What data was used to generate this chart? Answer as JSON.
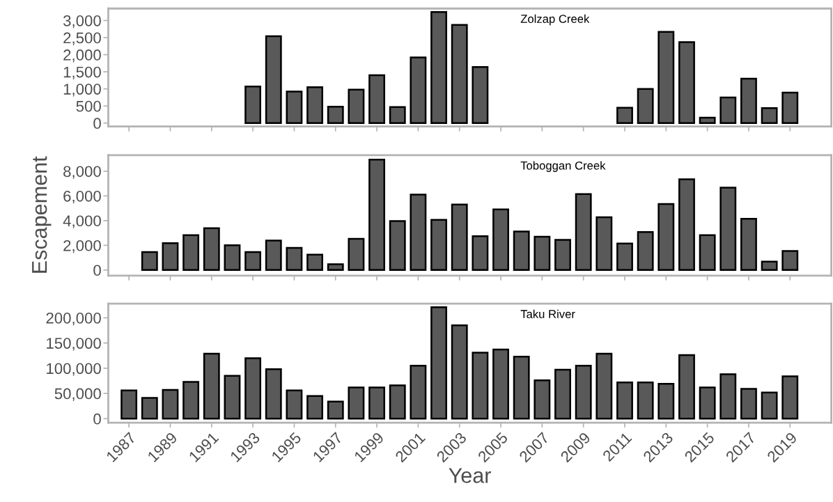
{
  "chart_data": [
    {
      "type": "bar",
      "title": "Zolzap Creek",
      "tick_labels": "y",
      "grid": false,
      "legend": false,
      "categories": [
        null,
        null,
        null,
        null,
        null,
        null,
        null,
        null,
        null,
        null,
        null,
        null,
        null,
        null,
        null,
        null,
        null,
        null,
        null,
        null,
        null,
        null,
        null,
        null,
        null,
        null,
        null,
        null,
        null,
        null,
        null,
        null,
        null
      ],
      "series": [
        {
          "color": "#595959",
          "values": [
            null,
            null,
            null,
            null,
            null,
            null,
            1070,
            2540,
            920,
            1050,
            480,
            980,
            1400,
            470,
            1920,
            3250,
            2870,
            1640,
            null,
            null,
            null,
            null,
            null,
            null,
            450,
            1000,
            2670,
            2370,
            160,
            750,
            1300,
            440,
            890
          ]
        }
      ],
      "ylim": [
        -100,
        3350
      ],
      "yticks": [
        0,
        500,
        {
          "value": 1000,
          "label": "1,000"
        },
        {
          "value": 1500,
          "label": "1,500"
        },
        {
          "value": 2000,
          "label": "2,000"
        },
        {
          "value": 2500,
          "label": "2,500"
        },
        {
          "value": 3000,
          "label": "3,000"
        }
      ]
    },
    {
      "type": "bar",
      "title": "Toboggan Creek",
      "ylabel": "Escapement",
      "tick_labels": "y",
      "grid": false,
      "legend": false,
      "categories": [
        null,
        null,
        null,
        null,
        null,
        null,
        null,
        null,
        null,
        null,
        null,
        null,
        null,
        null,
        null,
        null,
        null,
        null,
        null,
        null,
        null,
        null,
        null,
        null,
        null,
        null,
        null,
        null,
        null,
        null,
        null,
        null,
        null
      ],
      "series": [
        {
          "color": "#595959",
          "values": [
            null,
            1450,
            2180,
            2820,
            3380,
            2010,
            1450,
            2390,
            1800,
            1240,
            470,
            2520,
            8930,
            3970,
            6110,
            4060,
            5300,
            2740,
            4910,
            3120,
            2690,
            2440,
            6150,
            4270,
            2140,
            3080,
            5340,
            7350,
            2820,
            6670,
            4150,
            680,
            1540
          ]
        }
      ],
      "ylim": [
        -450,
        9300
      ],
      "yticks": [
        0,
        {
          "value": 2000,
          "label": "2,000"
        },
        {
          "value": 4000,
          "label": "4,000"
        },
        {
          "value": 6000,
          "label": "6,000"
        },
        {
          "value": 8000,
          "label": "8,000"
        }
      ]
    },
    {
      "type": "bar",
      "title": "Taku River",
      "xlabel": "Year",
      "grid": false,
      "legend": false,
      "categories": [
        "1987",
        null,
        "1989",
        null,
        "1991",
        null,
        "1993",
        null,
        "1995",
        null,
        "1997",
        null,
        "1999",
        null,
        "2001",
        null,
        "2003",
        null,
        "2005",
        null,
        "2007",
        null,
        "2009",
        null,
        "2011",
        null,
        "2013",
        null,
        "2015",
        null,
        "2017",
        null,
        "2019"
      ],
      "series": [
        {
          "color": "#595959",
          "values": [
            56000,
            41000,
            57000,
            73000,
            129000,
            85000,
            120000,
            98000,
            56000,
            45000,
            34000,
            62000,
            62000,
            66000,
            105000,
            221000,
            185000,
            131000,
            137000,
            123000,
            76000,
            97000,
            105000,
            129000,
            72000,
            72000,
            69000,
            126000,
            62000,
            88000,
            59000,
            52000,
            84000
          ]
        }
      ],
      "ylim": [
        -8000,
        228000
      ],
      "yticks": [
        0,
        {
          "value": 50000,
          "label": "50,000"
        },
        {
          "value": 100000,
          "label": "100,000"
        },
        {
          "value": 150000,
          "label": "150,000"
        },
        {
          "value": 200000,
          "label": "200,000"
        }
      ]
    }
  ]
}
